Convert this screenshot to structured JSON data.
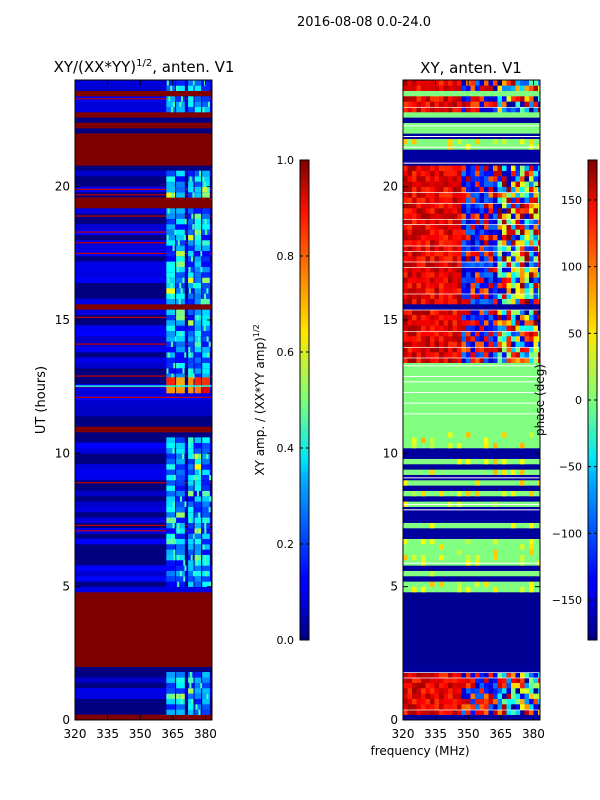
{
  "figure_title": "2016-08-08 0.0-24.0",
  "xlabel": "frequency (MHz)",
  "chart_data": [
    {
      "type": "heatmap",
      "title": "XY/(XX*YY)",
      "title_sup": "1/2",
      "title_suffix": ", anten. V1",
      "xlabel": "",
      "ylabel": "UT (hours)",
      "xlim": [
        320,
        383
      ],
      "ylim": [
        0,
        24
      ],
      "x_ticks": [
        320,
        335,
        350,
        365,
        380
      ],
      "y_ticks": [
        0,
        5,
        10,
        15,
        20
      ],
      "colorbar": {
        "label": "XY amp. / (XX*YY amp)",
        "label_sup": "1/2",
        "range": [
          0.0,
          1.0
        ],
        "ticks": [
          "0.0",
          "0.2",
          "0.4",
          "0.6",
          "0.8",
          "1.0"
        ],
        "tick_values": [
          0.0,
          0.2,
          0.4,
          0.6,
          0.8,
          1.0
        ]
      },
      "saturated_bands_hours": [
        [
          0.0,
          0.12
        ],
        [
          1.8,
          4.8
        ],
        [
          10.6,
          10.8
        ],
        [
          15.2,
          15.45
        ],
        [
          19.1,
          19.4
        ],
        [
          20.6,
          21.9
        ],
        [
          22.05,
          22.25
        ],
        [
          22.55,
          22.7
        ],
        [
          23.3,
          23.4
        ]
      ],
      "channel_block_mhz": [
        [
          362,
          366
        ],
        [
          366.5,
          370.5
        ],
        [
          372,
          374.5
        ],
        [
          375,
          378
        ],
        [
          378.5,
          382
        ]
      ],
      "structured_hours": [
        [
          0.1,
          1.7
        ],
        [
          5.0,
          10.5
        ],
        [
          12.2,
          15.2
        ],
        [
          15.5,
          19.0
        ],
        [
          19.4,
          20.5
        ],
        [
          22.5,
          24.0
        ]
      ]
    },
    {
      "type": "heatmap",
      "title": "XY, anten. V1",
      "xlabel": "",
      "ylabel": "",
      "xlim": [
        320,
        383
      ],
      "ylim": [
        0,
        24
      ],
      "x_ticks": [
        320,
        335,
        350,
        365,
        380
      ],
      "y_ticks": [
        0,
        5,
        10,
        15,
        20
      ],
      "colorbar": {
        "label": "phase (deg)",
        "range": [
          -180,
          180
        ],
        "ticks": [
          "150",
          "100",
          "50",
          "0",
          "−50",
          "−100",
          "−150"
        ],
        "tick_values": [
          150,
          100,
          50,
          0,
          -50,
          -100,
          -150
        ]
      },
      "blue_bands_hours": [
        [
          1.8,
          4.8
        ]
      ],
      "green_bands_hours": [
        [
          10.7,
          12.0
        ],
        [
          12.0,
          13.2
        ],
        [
          21.9,
          22.3
        ],
        [
          22.5,
          22.7
        ],
        [
          23.3,
          23.5
        ]
      ],
      "phase_noise_hours": [
        [
          0.1,
          1.7
        ],
        [
          13.2,
          15.2
        ],
        [
          15.5,
          20.6
        ],
        [
          22.7,
          24.0
        ]
      ]
    }
  ]
}
